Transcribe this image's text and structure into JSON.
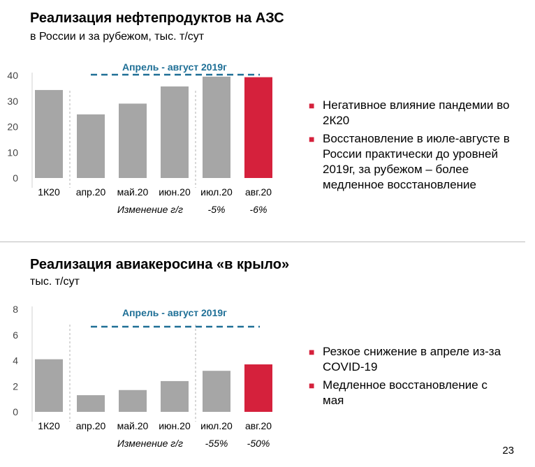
{
  "page_number": "23",
  "colors": {
    "bar": "#a6a6a6",
    "bar_highlight": "#d5213c",
    "band": "#1e6f96",
    "bullet": "#d5213c"
  },
  "chart1": {
    "title": "Реализация нефтепродуктов на АЗС",
    "subtitle": "в России и за рубежом, тыс. т/сут",
    "bullets": [
      "Негативное влияние пандемии во 2К20",
      "Восстановление в июле-августе в России практически до уровней 2019г, за рубежом – более медленное восстановление"
    ]
  },
  "chart2": {
    "title": "Реализация авиакеросина «в крыло»",
    "subtitle": "тыс. т/сут",
    "bullets": [
      "Резкое снижение в апреле из-за COVID-19",
      "Медленное восстановление с мая"
    ]
  },
  "chart_data": [
    {
      "type": "bar",
      "categories": [
        "1К20",
        "апр.20",
        "май.20",
        "июн.20",
        "июл.20",
        "авг.20"
      ],
      "values": [
        34.3,
        24.8,
        29.0,
        35.7,
        39.5,
        39.3
      ],
      "highlight_index": 5,
      "ylim": [
        0,
        40
      ],
      "yticks": [
        0,
        10,
        20,
        30,
        40
      ],
      "reference_label": "Апрель - август 2019г",
      "reference_value": 40,
      "change_label": "Изменение г/г",
      "changes": [
        "",
        "",
        "",
        "",
        "-5%",
        "-6%"
      ]
    },
    {
      "type": "bar",
      "categories": [
        "1К20",
        "апр.20",
        "май.20",
        "июн.20",
        "июл.20",
        "авг.20"
      ],
      "values": [
        4.1,
        1.3,
        1.7,
        2.4,
        3.2,
        3.7
      ],
      "highlight_index": 5,
      "ylim": [
        0,
        8
      ],
      "yticks": [
        0,
        2,
        4,
        6,
        8
      ],
      "reference_label": "Апрель - август 2019г",
      "reference_value": 6.6,
      "change_label": "Изменение г/г",
      "changes": [
        "",
        "",
        "",
        "",
        "-55%",
        "-50%"
      ]
    }
  ]
}
